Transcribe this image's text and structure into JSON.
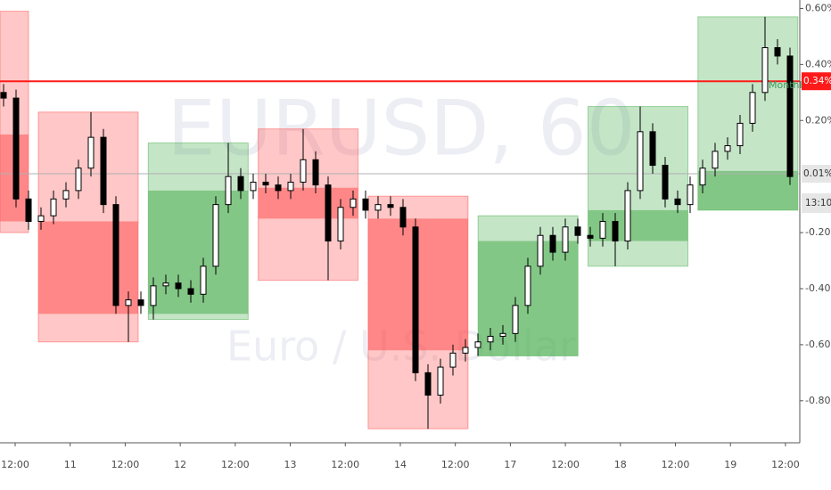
{
  "chart_data": {
    "type": "candlestick",
    "watermark": {
      "symbol": "EURUSD, 60",
      "description": "Euro / U.S. Dollar"
    },
    "annotation": "Monthly",
    "ylim": [
      -0.95,
      0.63
    ],
    "yticks": [
      {
        "value": 0.6,
        "label": "0.60%"
      },
      {
        "value": 0.4,
        "label": "0.40%"
      },
      {
        "value": 0.2,
        "label": "0.20%"
      },
      {
        "value": -0.2,
        "label": "-0.20%"
      },
      {
        "value": -0.4,
        "label": "-0.40%"
      },
      {
        "value": -0.6,
        "label": "-0.60%"
      },
      {
        "value": -0.8,
        "label": "-0.80%"
      }
    ],
    "x_labels": [
      "12:00",
      "11",
      "12:00",
      "12",
      "12:00",
      "13",
      "12:00",
      "14",
      "12:00",
      "17",
      "12:00",
      "18",
      "12:00",
      "19",
      "12:00"
    ],
    "price_lines": [
      {
        "value": 0.34,
        "label": "0.34%",
        "color": "#ff1a1a"
      },
      {
        "value": 0.01,
        "label": "0.01%",
        "color": "#b0b0b0"
      }
    ],
    "countdown": "13:10",
    "up_color": "#ffffff",
    "down_color": "#000000",
    "range_colors": {
      "up": "#4caf50",
      "down": "#ff5252"
    },
    "day_ranges": [
      {
        "high": 0.59,
        "low": -0.2,
        "open": 0.15,
        "close": -0.16
      },
      {
        "high": 0.23,
        "low": -0.59,
        "open": -0.16,
        "close": -0.49
      },
      {
        "high": 0.12,
        "low": -0.51,
        "open": -0.49,
        "close": -0.05
      },
      {
        "high": 0.17,
        "low": -0.37,
        "open": -0.04,
        "close": -0.15
      },
      {
        "high": -0.07,
        "low": -0.9,
        "open": -0.15,
        "close": -0.62
      },
      {
        "high": -0.14,
        "low": -0.64,
        "open": -0.64,
        "close": -0.23
      },
      {
        "high": 0.25,
        "low": -0.32,
        "open": -0.23,
        "close": -0.12
      },
      {
        "high": 0.57,
        "low": -0.12,
        "open": -0.12,
        "close": 0.02
      }
    ],
    "candles": {
      "open": [
        0.3,
        0.28,
        -0.08,
        -0.16,
        -0.14,
        -0.08,
        -0.05,
        0.03,
        0.14,
        -0.1,
        -0.46,
        -0.44,
        -0.46,
        -0.39,
        -0.38,
        -0.4,
        -0.42,
        -0.32,
        -0.1,
        0.0,
        -0.05,
        -0.02,
        -0.03,
        -0.05,
        -0.02,
        0.06,
        -0.03,
        -0.23,
        -0.11,
        -0.08,
        -0.12,
        -0.1,
        -0.11,
        -0.18,
        -0.7,
        -0.78,
        -0.68,
        -0.63,
        -0.61,
        -0.59,
        -0.57,
        -0.56,
        -0.46,
        -0.32,
        -0.21,
        -0.27,
        -0.18,
        -0.21,
        -0.22,
        -0.16,
        -0.23,
        -0.05,
        0.16,
        0.04,
        -0.08,
        -0.1,
        -0.03,
        0.03,
        0.09,
        0.11,
        0.19,
        0.3,
        0.46,
        0.43
      ],
      "high": [
        0.33,
        0.31,
        -0.05,
        -0.11,
        -0.05,
        -0.02,
        0.06,
        0.23,
        0.17,
        -0.07,
        -0.41,
        -0.41,
        -0.36,
        -0.35,
        -0.35,
        -0.37,
        -0.29,
        -0.07,
        0.12,
        0.03,
        0.01,
        0.01,
        0.0,
        0.01,
        0.17,
        0.09,
        0.0,
        -0.08,
        -0.05,
        -0.05,
        -0.07,
        -0.07,
        -0.08,
        -0.15,
        -0.67,
        -0.65,
        -0.6,
        -0.58,
        -0.56,
        -0.54,
        -0.53,
        -0.43,
        -0.29,
        -0.18,
        -0.18,
        -0.15,
        -0.15,
        -0.18,
        -0.13,
        -0.13,
        -0.02,
        0.25,
        0.19,
        0.07,
        -0.05,
        0.0,
        0.06,
        0.12,
        0.14,
        0.22,
        0.33,
        0.57,
        0.49,
        0.46
      ],
      "low": [
        0.25,
        -0.11,
        -0.19,
        -0.19,
        -0.17,
        -0.11,
        -0.08,
        0.0,
        -0.13,
        -0.49,
        -0.59,
        -0.49,
        -0.51,
        -0.42,
        -0.43,
        -0.45,
        -0.45,
        -0.35,
        -0.13,
        -0.08,
        -0.08,
        -0.06,
        -0.08,
        -0.08,
        -0.05,
        -0.06,
        -0.37,
        -0.26,
        -0.14,
        -0.15,
        -0.15,
        -0.14,
        -0.21,
        -0.73,
        -0.9,
        -0.81,
        -0.71,
        -0.66,
        -0.64,
        -0.62,
        -0.6,
        -0.59,
        -0.49,
        -0.35,
        -0.3,
        -0.3,
        -0.24,
        -0.25,
        -0.25,
        -0.32,
        -0.26,
        -0.08,
        0.01,
        -0.11,
        -0.13,
        -0.13,
        -0.06,
        0.0,
        0.06,
        0.08,
        0.16,
        0.27,
        0.4,
        -0.03
      ],
      "close": [
        0.28,
        -0.08,
        -0.16,
        -0.14,
        -0.08,
        -0.05,
        0.03,
        0.14,
        -0.1,
        -0.46,
        -0.44,
        -0.46,
        -0.39,
        -0.38,
        -0.4,
        -0.42,
        -0.32,
        -0.1,
        0.0,
        -0.05,
        -0.02,
        -0.03,
        -0.05,
        -0.02,
        0.06,
        -0.03,
        -0.23,
        -0.11,
        -0.08,
        -0.12,
        -0.1,
        -0.11,
        -0.18,
        -0.7,
        -0.78,
        -0.68,
        -0.63,
        -0.61,
        -0.59,
        -0.57,
        -0.56,
        -0.46,
        -0.32,
        -0.21,
        -0.27,
        -0.18,
        -0.21,
        -0.22,
        -0.16,
        -0.23,
        -0.05,
        0.16,
        0.04,
        -0.08,
        -0.1,
        -0.03,
        0.03,
        0.09,
        0.11,
        0.19,
        0.3,
        0.46,
        0.43,
        0.0
      ]
    }
  }
}
